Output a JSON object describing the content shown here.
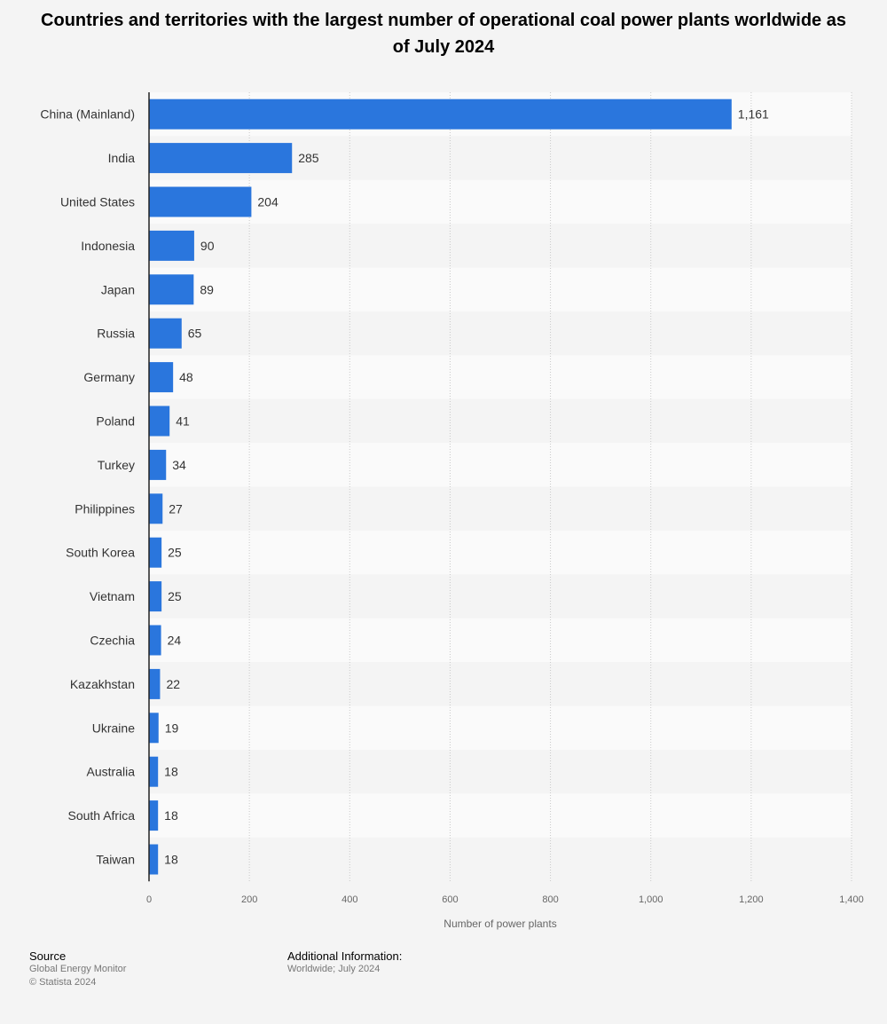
{
  "chart_data": {
    "type": "bar",
    "orientation": "horizontal",
    "title": "Countries and territories with the largest number of operational coal power plants worldwide as of July 2024",
    "categories": [
      "China (Mainland)",
      "India",
      "United States",
      "Indonesia",
      "Japan",
      "Russia",
      "Germany",
      "Poland",
      "Turkey",
      "Philippines",
      "South Korea",
      "Vietnam",
      "Czechia",
      "Kazakhstan",
      "Ukraine",
      "Australia",
      "South Africa",
      "Taiwan"
    ],
    "values": [
      1161,
      285,
      204,
      90,
      89,
      65,
      48,
      41,
      34,
      27,
      25,
      25,
      24,
      22,
      19,
      18,
      18,
      18
    ],
    "value_labels": [
      "1,161",
      "285",
      "204",
      "90",
      "89",
      "65",
      "48",
      "41",
      "34",
      "27",
      "25",
      "25",
      "24",
      "22",
      "19",
      "18",
      "18",
      "18"
    ],
    "xlabel": "Number of power plants",
    "ylabel": "",
    "xlim": [
      0,
      1400
    ],
    "xticks": [
      0,
      200,
      400,
      600,
      800,
      1000,
      1200,
      1400
    ],
    "xtick_labels": [
      "0",
      "200",
      "400",
      "600",
      "800",
      "1,000",
      "1,200",
      "1,400"
    ],
    "grid": "vertical dotted",
    "bar_color": "#2a76dd"
  },
  "footer": {
    "source_heading": "Source",
    "source_lines": [
      "Global Energy Monitor",
      "© Statista 2024"
    ],
    "info_heading": "Additional Information:",
    "info_lines": [
      "Worldwide; July 2024"
    ]
  }
}
